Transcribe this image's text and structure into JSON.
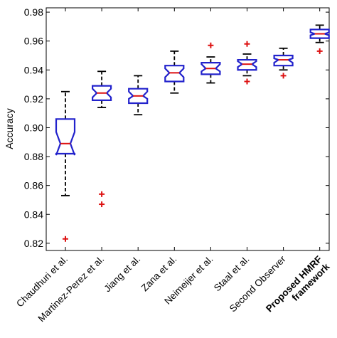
{
  "chart_data": {
    "type": "box",
    "ylabel": "Accuracy",
    "xlabel": "",
    "ylim": [
      0.815,
      0.983
    ],
    "yticks": [
      0.82,
      0.84,
      0.86,
      0.88,
      0.9,
      0.92,
      0.94,
      0.96,
      0.98
    ],
    "ytick_labels": [
      "0.82",
      "0.84",
      "0.86",
      "0.88",
      "0.90",
      "0.92",
      "0.94",
      "0.96",
      "0.98"
    ],
    "notched": true,
    "grid": false,
    "colors": {
      "box": "#2222cc",
      "median": "#dd1111",
      "whisker": "#000000",
      "outlier": "#dd1111"
    },
    "categories": [
      {
        "label": "Chaudhuri et al.",
        "bold": false
      },
      {
        "label": "Martinez-Perez et al.",
        "bold": false
      },
      {
        "label": "Jiang et al.",
        "bold": false
      },
      {
        "label": "Zana et al.",
        "bold": false
      },
      {
        "label": "Neimeijer et al.",
        "bold": false
      },
      {
        "label": "Staal et al.",
        "bold": false
      },
      {
        "label": "Second Observer",
        "bold": false
      },
      {
        "label": "Proposed HMRF framework",
        "label_lines": [
          "Proposed HMRF",
          "framework"
        ],
        "bold": true
      }
    ],
    "boxes": [
      {
        "whisker_low": 0.853,
        "q1": 0.882,
        "median": 0.889,
        "q3": 0.906,
        "whisker_high": 0.925,
        "notch_low": 0.881,
        "notch_high": 0.897,
        "outliers": [
          0.823
        ]
      },
      {
        "whisker_low": 0.914,
        "q1": 0.919,
        "median": 0.924,
        "q3": 0.929,
        "whisker_high": 0.939,
        "notch_low": 0.921,
        "notch_high": 0.927,
        "outliers": [
          0.854,
          0.847
        ]
      },
      {
        "whisker_low": 0.909,
        "q1": 0.917,
        "median": 0.922,
        "q3": 0.927,
        "whisker_high": 0.936,
        "notch_low": 0.92,
        "notch_high": 0.925,
        "outliers": []
      },
      {
        "whisker_low": 0.924,
        "q1": 0.932,
        "median": 0.938,
        "q3": 0.943,
        "whisker_high": 0.953,
        "notch_low": 0.935,
        "notch_high": 0.941,
        "outliers": []
      },
      {
        "whisker_low": 0.931,
        "q1": 0.937,
        "median": 0.941,
        "q3": 0.945,
        "whisker_high": 0.949,
        "notch_low": 0.939,
        "notch_high": 0.944,
        "outliers": [
          0.957
        ]
      },
      {
        "whisker_low": 0.936,
        "q1": 0.94,
        "median": 0.944,
        "q3": 0.947,
        "whisker_high": 0.951,
        "notch_low": 0.942,
        "notch_high": 0.946,
        "outliers": [
          0.958,
          0.932
        ]
      },
      {
        "whisker_low": 0.94,
        "q1": 0.943,
        "median": 0.947,
        "q3": 0.95,
        "whisker_high": 0.955,
        "notch_low": 0.945,
        "notch_high": 0.948,
        "outliers": [
          0.936
        ]
      },
      {
        "whisker_low": 0.959,
        "q1": 0.962,
        "median": 0.965,
        "q3": 0.968,
        "whisker_high": 0.971,
        "notch_low": 0.964,
        "notch_high": 0.966,
        "outliers": [
          0.953
        ]
      }
    ]
  }
}
